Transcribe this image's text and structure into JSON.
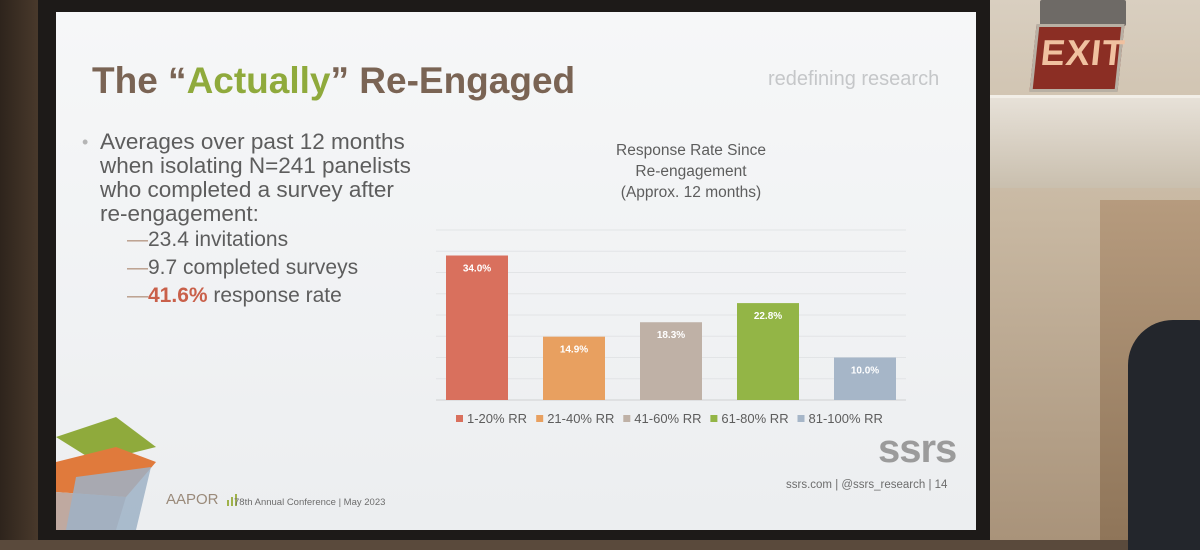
{
  "slide": {
    "title_pre": "The “",
    "title_accent": "Actually",
    "title_post": "” Re-Engaged",
    "tagline": "redefining research",
    "bullet_main": "Averages over past 12 months when isolating N=241 panelists who completed a survey after re-engagement:",
    "sub_items": [
      {
        "dash": "—",
        "text": "23.4 invitations"
      },
      {
        "dash": "—",
        "text": "9.7 completed surveys"
      }
    ],
    "sub_highlight": {
      "dash": "—",
      "value": "41.6%",
      "text": " response rate"
    },
    "logo": "ssrs",
    "footer_right": "ssrs.com  |  @ssrs_research  |  14",
    "aapor": "AAPOR",
    "footer_left": "78th Annual Conference  |  May 2023"
  },
  "exit_sign": "EXIT",
  "colors": {
    "bar1": "#d9705d",
    "bar2": "#e8a060",
    "bar3": "#bfb1a6",
    "bar4": "#93b546",
    "bar5": "#a6b6c8"
  },
  "chart_data": {
    "type": "bar",
    "title_lines": [
      "Response Rate Since",
      "Re-engagement",
      "(Approx. 12 months)"
    ],
    "categories": [
      "1-20% RR",
      "21-40% RR",
      "41-60% RR",
      "61-80% RR",
      "81-100% RR"
    ],
    "values": [
      34.0,
      14.9,
      18.3,
      22.8,
      10.0
    ],
    "data_labels": [
      "34.0%",
      "14.9%",
      "18.3%",
      "22.8%",
      "10.0%"
    ],
    "ylim": [
      0,
      40
    ],
    "grid": true,
    "legend_position": "bottom",
    "xlabel": "",
    "ylabel": ""
  }
}
